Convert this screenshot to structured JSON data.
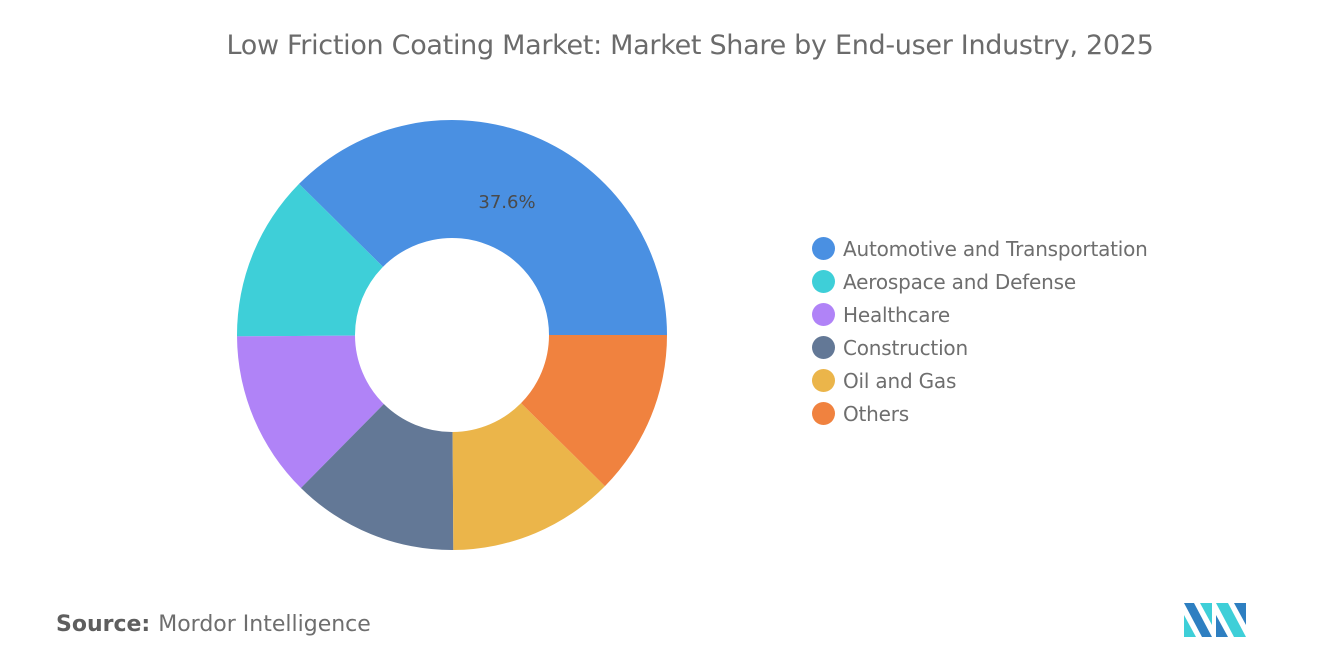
{
  "chart_data": {
    "type": "pie",
    "variant": "donut",
    "title": "Low Friction Coating Market: Market Share by End-user Industry, 2025",
    "categories": [
      "Automotive and Transportation",
      "Aerospace and Defense",
      "Healthcare",
      "Construction",
      "Oil and Gas",
      "Others"
    ],
    "values": [
      37.6,
      12.5,
      12.5,
      12.5,
      12.5,
      12.4
    ],
    "data_labels": [
      "37.6%",
      "",
      "",
      "",
      "",
      ""
    ],
    "colors": [
      "#4a90e2",
      "#3ecfd8",
      "#b083f7",
      "#637896",
      "#ebb54a",
      "#f0823f"
    ],
    "legend_position": "right"
  },
  "footer": {
    "source_label": "Source:",
    "source_value": "Mordor Intelligence",
    "logo_text": "Mordor Intelligence"
  }
}
